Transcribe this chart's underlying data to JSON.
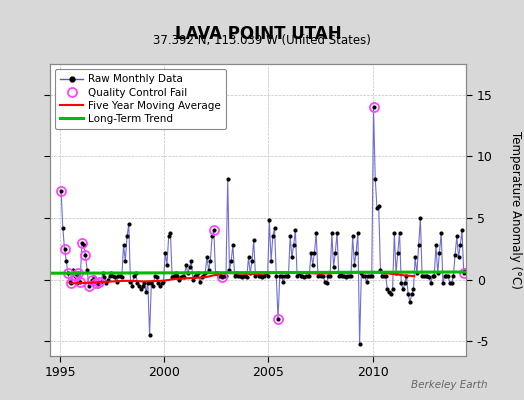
{
  "title": "LAVA POINT UTAH",
  "subtitle": "37.392 N, 113.039 W (United States)",
  "ylabel": "Temperature Anomaly (°C)",
  "credit": "Berkeley Earth",
  "xlim": [
    1994.5,
    2014.5
  ],
  "ylim": [
    -6.2,
    17.5
  ],
  "yticks": [
    -5,
    0,
    5,
    10,
    15
  ],
  "xticks": [
    1995,
    2000,
    2005,
    2010
  ],
  "bg_color": "#d8d8d8",
  "plot_bg_color": "#ffffff",
  "raw_color": "#5555cc",
  "ma_color": "#ff0000",
  "trend_color": "#00bb00",
  "qc_color": "#ff44ff",
  "raw_monthly": [
    [
      1995.042,
      7.2
    ],
    [
      1995.125,
      4.2
    ],
    [
      1995.208,
      2.5
    ],
    [
      1995.292,
      1.5
    ],
    [
      1995.375,
      0.5
    ],
    [
      1995.458,
      -0.2
    ],
    [
      1995.542,
      -0.3
    ],
    [
      1995.625,
      0.8
    ],
    [
      1995.708,
      0.3
    ],
    [
      1995.792,
      -0.3
    ],
    [
      1995.875,
      0.5
    ],
    [
      1995.958,
      -0.2
    ],
    [
      1996.042,
      3.0
    ],
    [
      1996.125,
      2.8
    ],
    [
      1996.208,
      2.0
    ],
    [
      1996.292,
      0.8
    ],
    [
      1996.375,
      -0.5
    ],
    [
      1996.458,
      -0.3
    ],
    [
      1996.542,
      0.0
    ],
    [
      1996.625,
      0.2
    ],
    [
      1996.708,
      -0.3
    ],
    [
      1996.792,
      -0.5
    ],
    [
      1996.875,
      -0.2
    ],
    [
      1996.958,
      -0.2
    ],
    [
      1997.042,
      0.5
    ],
    [
      1997.125,
      0.2
    ],
    [
      1997.208,
      -0.3
    ],
    [
      1997.292,
      0.0
    ],
    [
      1997.375,
      0.3
    ],
    [
      1997.458,
      0.5
    ],
    [
      1997.542,
      0.3
    ],
    [
      1997.625,
      0.2
    ],
    [
      1997.708,
      -0.2
    ],
    [
      1997.792,
      0.3
    ],
    [
      1997.875,
      0.3
    ],
    [
      1997.958,
      0.2
    ],
    [
      1998.042,
      2.8
    ],
    [
      1998.125,
      1.5
    ],
    [
      1998.208,
      3.5
    ],
    [
      1998.292,
      4.5
    ],
    [
      1998.375,
      -0.2
    ],
    [
      1998.458,
      -0.5
    ],
    [
      1998.542,
      0.3
    ],
    [
      1998.625,
      0.5
    ],
    [
      1998.708,
      -0.3
    ],
    [
      1998.792,
      -0.5
    ],
    [
      1998.875,
      -0.8
    ],
    [
      1998.958,
      -0.5
    ],
    [
      1999.042,
      -0.3
    ],
    [
      1999.125,
      -1.0
    ],
    [
      1999.208,
      -0.3
    ],
    [
      1999.292,
      -4.5
    ],
    [
      1999.375,
      -0.3
    ],
    [
      1999.458,
      -0.5
    ],
    [
      1999.542,
      0.3
    ],
    [
      1999.625,
      0.2
    ],
    [
      1999.708,
      -0.3
    ],
    [
      1999.792,
      -0.5
    ],
    [
      1999.875,
      -0.3
    ],
    [
      1999.958,
      -0.2
    ],
    [
      2000.042,
      2.2
    ],
    [
      2000.125,
      1.2
    ],
    [
      2000.208,
      3.5
    ],
    [
      2000.292,
      3.8
    ],
    [
      2000.375,
      0.2
    ],
    [
      2000.458,
      0.3
    ],
    [
      2000.542,
      0.5
    ],
    [
      2000.625,
      0.3
    ],
    [
      2000.708,
      0.0
    ],
    [
      2000.792,
      0.2
    ],
    [
      2000.875,
      0.3
    ],
    [
      2000.958,
      0.2
    ],
    [
      2001.042,
      1.2
    ],
    [
      2001.125,
      0.5
    ],
    [
      2001.208,
      1.0
    ],
    [
      2001.292,
      1.5
    ],
    [
      2001.375,
      0.0
    ],
    [
      2001.458,
      0.3
    ],
    [
      2001.542,
      0.3
    ],
    [
      2001.625,
      0.5
    ],
    [
      2001.708,
      -0.2
    ],
    [
      2001.792,
      0.2
    ],
    [
      2001.875,
      0.3
    ],
    [
      2001.958,
      0.5
    ],
    [
      2002.042,
      1.8
    ],
    [
      2002.125,
      0.8
    ],
    [
      2002.208,
      1.5
    ],
    [
      2002.292,
      3.5
    ],
    [
      2002.375,
      4.0
    ],
    [
      2002.458,
      0.5
    ],
    [
      2002.542,
      0.5
    ],
    [
      2002.625,
      0.3
    ],
    [
      2002.708,
      0.3
    ],
    [
      2002.792,
      0.2
    ],
    [
      2002.875,
      0.3
    ],
    [
      2002.958,
      0.3
    ],
    [
      2003.042,
      8.2
    ],
    [
      2003.125,
      0.8
    ],
    [
      2003.208,
      1.5
    ],
    [
      2003.292,
      2.8
    ],
    [
      2003.375,
      0.3
    ],
    [
      2003.458,
      0.5
    ],
    [
      2003.542,
      0.3
    ],
    [
      2003.625,
      0.3
    ],
    [
      2003.708,
      0.2
    ],
    [
      2003.792,
      0.3
    ],
    [
      2003.875,
      0.3
    ],
    [
      2003.958,
      0.2
    ],
    [
      2004.042,
      1.8
    ],
    [
      2004.125,
      0.5
    ],
    [
      2004.208,
      1.5
    ],
    [
      2004.292,
      3.2
    ],
    [
      2004.375,
      0.3
    ],
    [
      2004.458,
      0.5
    ],
    [
      2004.542,
      0.3
    ],
    [
      2004.625,
      0.3
    ],
    [
      2004.708,
      0.2
    ],
    [
      2004.792,
      0.3
    ],
    [
      2004.875,
      0.5
    ],
    [
      2004.958,
      0.3
    ],
    [
      2005.042,
      4.8
    ],
    [
      2005.125,
      1.5
    ],
    [
      2005.208,
      3.5
    ],
    [
      2005.292,
      4.2
    ],
    [
      2005.375,
      0.3
    ],
    [
      2005.458,
      -3.2
    ],
    [
      2005.542,
      0.3
    ],
    [
      2005.625,
      0.3
    ],
    [
      2005.708,
      -0.2
    ],
    [
      2005.792,
      0.3
    ],
    [
      2005.875,
      0.3
    ],
    [
      2005.958,
      0.3
    ],
    [
      2006.042,
      3.5
    ],
    [
      2006.125,
      1.8
    ],
    [
      2006.208,
      2.8
    ],
    [
      2006.292,
      4.0
    ],
    [
      2006.375,
      0.3
    ],
    [
      2006.458,
      0.5
    ],
    [
      2006.542,
      0.3
    ],
    [
      2006.625,
      0.3
    ],
    [
      2006.708,
      0.2
    ],
    [
      2006.792,
      0.3
    ],
    [
      2006.875,
      0.3
    ],
    [
      2006.958,
      0.3
    ],
    [
      2007.042,
      2.2
    ],
    [
      2007.125,
      1.2
    ],
    [
      2007.208,
      2.2
    ],
    [
      2007.292,
      3.8
    ],
    [
      2007.375,
      0.3
    ],
    [
      2007.458,
      0.5
    ],
    [
      2007.542,
      0.3
    ],
    [
      2007.625,
      0.3
    ],
    [
      2007.708,
      -0.2
    ],
    [
      2007.792,
      -0.3
    ],
    [
      2007.875,
      0.3
    ],
    [
      2007.958,
      0.3
    ],
    [
      2008.042,
      3.8
    ],
    [
      2008.125,
      1.0
    ],
    [
      2008.208,
      2.2
    ],
    [
      2008.292,
      3.8
    ],
    [
      2008.375,
      0.3
    ],
    [
      2008.458,
      0.5
    ],
    [
      2008.542,
      0.3
    ],
    [
      2008.625,
      0.3
    ],
    [
      2008.708,
      0.2
    ],
    [
      2008.792,
      0.3
    ],
    [
      2008.875,
      0.3
    ],
    [
      2008.958,
      0.3
    ],
    [
      2009.042,
      3.5
    ],
    [
      2009.125,
      1.2
    ],
    [
      2009.208,
      2.2
    ],
    [
      2009.292,
      3.8
    ],
    [
      2009.375,
      -5.2
    ],
    [
      2009.458,
      0.5
    ],
    [
      2009.542,
      0.3
    ],
    [
      2009.625,
      0.3
    ],
    [
      2009.708,
      -0.2
    ],
    [
      2009.792,
      0.3
    ],
    [
      2009.875,
      0.3
    ],
    [
      2009.958,
      0.3
    ],
    [
      2010.042,
      14.0
    ],
    [
      2010.125,
      8.2
    ],
    [
      2010.208,
      5.8
    ],
    [
      2010.292,
      6.0
    ],
    [
      2010.375,
      0.8
    ],
    [
      2010.458,
      0.3
    ],
    [
      2010.542,
      0.3
    ],
    [
      2010.625,
      0.3
    ],
    [
      2010.708,
      -0.8
    ],
    [
      2010.792,
      -1.0
    ],
    [
      2010.875,
      -1.2
    ],
    [
      2010.958,
      -0.8
    ],
    [
      2011.042,
      3.8
    ],
    [
      2011.125,
      0.5
    ],
    [
      2011.208,
      2.2
    ],
    [
      2011.292,
      3.8
    ],
    [
      2011.375,
      -0.3
    ],
    [
      2011.458,
      -0.8
    ],
    [
      2011.542,
      -0.3
    ],
    [
      2011.625,
      0.3
    ],
    [
      2011.708,
      -1.2
    ],
    [
      2011.792,
      -1.8
    ],
    [
      2011.875,
      -1.2
    ],
    [
      2011.958,
      -0.8
    ],
    [
      2012.042,
      1.8
    ],
    [
      2012.125,
      0.5
    ],
    [
      2012.208,
      2.8
    ],
    [
      2012.292,
      5.0
    ],
    [
      2012.375,
      0.3
    ],
    [
      2012.458,
      0.3
    ],
    [
      2012.542,
      0.3
    ],
    [
      2012.625,
      0.3
    ],
    [
      2012.708,
      0.2
    ],
    [
      2012.792,
      -0.3
    ],
    [
      2012.875,
      0.3
    ],
    [
      2012.958,
      0.3
    ],
    [
      2013.042,
      2.8
    ],
    [
      2013.125,
      0.5
    ],
    [
      2013.208,
      2.2
    ],
    [
      2013.292,
      3.8
    ],
    [
      2013.375,
      -0.3
    ],
    [
      2013.458,
      0.3
    ],
    [
      2013.542,
      0.3
    ],
    [
      2013.625,
      0.3
    ],
    [
      2013.708,
      -0.3
    ],
    [
      2013.792,
      -0.3
    ],
    [
      2013.875,
      0.3
    ],
    [
      2013.958,
      2.0
    ],
    [
      2014.042,
      3.5
    ],
    [
      2014.125,
      1.8
    ],
    [
      2014.208,
      2.8
    ],
    [
      2014.292,
      4.0
    ],
    [
      2014.375,
      0.5
    ],
    [
      2014.458,
      0.8
    ]
  ],
  "qc_fail_points": [
    [
      1995.042,
      7.2
    ],
    [
      1995.208,
      2.5
    ],
    [
      1995.375,
      0.5
    ],
    [
      1995.542,
      -0.3
    ],
    [
      1995.708,
      0.3
    ],
    [
      1995.875,
      0.5
    ],
    [
      1995.958,
      -0.2
    ],
    [
      1996.042,
      3.0
    ],
    [
      1996.208,
      2.0
    ],
    [
      1996.375,
      -0.5
    ],
    [
      1996.542,
      0.0
    ],
    [
      1996.708,
      -0.3
    ],
    [
      1996.875,
      -0.2
    ],
    [
      2002.375,
      4.0
    ],
    [
      2002.792,
      0.2
    ],
    [
      2005.458,
      -3.2
    ],
    [
      2010.042,
      14.0
    ],
    [
      2014.375,
      0.5
    ]
  ],
  "moving_avg_x": [
    1995.5,
    1996.0,
    1996.5,
    1997.0,
    1997.5,
    1998.0,
    1998.5,
    1999.0,
    1999.5,
    2000.0,
    2000.5,
    2001.0,
    2001.5,
    2002.0,
    2002.5,
    2003.0,
    2003.5,
    2004.0,
    2004.5,
    2005.0,
    2005.5,
    2006.0,
    2006.5,
    2007.0,
    2007.5,
    2008.0,
    2008.5,
    2009.0,
    2009.5,
    2010.0,
    2010.5,
    2011.0,
    2011.5,
    2012.0
  ],
  "moving_avg_y": [
    -0.3,
    -0.28,
    -0.25,
    -0.2,
    -0.15,
    -0.1,
    -0.1,
    -0.15,
    -0.12,
    -0.08,
    0.05,
    0.1,
    0.15,
    0.2,
    0.4,
    0.55,
    0.5,
    0.48,
    0.45,
    0.52,
    0.55,
    0.58,
    0.55,
    0.52,
    0.48,
    0.52,
    0.55,
    0.58,
    0.62,
    0.6,
    0.55,
    0.45,
    0.35,
    0.28
  ],
  "trend_x": [
    1994.5,
    2014.5
  ],
  "trend_y": [
    0.52,
    0.62
  ]
}
